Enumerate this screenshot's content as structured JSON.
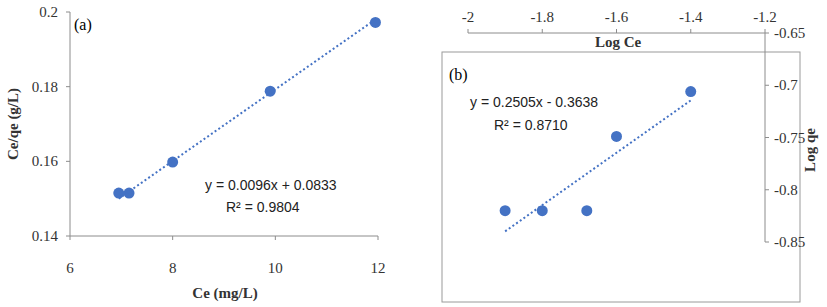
{
  "chart_data": [
    {
      "type": "scatter",
      "title": "(a)",
      "x_label": "Ce (mg/L)",
      "y_label": "Ce/qe (g/L)",
      "xlim": [
        6,
        12
      ],
      "xticks": [
        6,
        8,
        10,
        12
      ],
      "ylim": [
        0.14,
        0.2
      ],
      "yticks": [
        0.14,
        0.16,
        0.18,
        0.2
      ],
      "grid": false,
      "annotations": [
        "y = 0.0096x + 0.0833",
        "R² = 0.9804"
      ],
      "series": [
        {
          "type": "scatter",
          "marker": "circle",
          "color": "#4472c4",
          "x": [
            6.95,
            7.15,
            8.0,
            9.9,
            11.95
          ],
          "values": [
            0.1515,
            0.1515,
            0.1598,
            0.1788,
            0.1972
          ]
        },
        {
          "type": "line",
          "line_style": "dotted",
          "color": "#4472c4",
          "x": [
            6.95,
            11.95
          ],
          "values": [
            0.15,
            0.198
          ]
        }
      ]
    },
    {
      "type": "scatter",
      "title": "(b)",
      "x_label": "Log Ce",
      "y_label": "Log qe",
      "xlim": [
        -2,
        -1.2
      ],
      "xticks": [
        -2,
        -1.8,
        -1.6,
        -1.4,
        -1.2
      ],
      "ylim": [
        -0.85,
        -0.65
      ],
      "yticks": [
        -0.85,
        -0.8,
        -0.75,
        -0.7,
        -0.65
      ],
      "grid": false,
      "annotations": [
        "y = 0.2505x - 0.3638",
        "R² = 0.8710"
      ],
      "series": [
        {
          "type": "scatter",
          "marker": "circle",
          "color": "#4472c4",
          "x": [
            -1.9,
            -1.8,
            -1.68,
            -1.6,
            -1.4
          ],
          "values": [
            -0.82,
            -0.82,
            -0.82,
            -0.749,
            -0.706
          ]
        },
        {
          "type": "line",
          "line_style": "dotted",
          "color": "#4472c4",
          "x": [
            -1.9,
            -1.4
          ],
          "values": [
            -0.8398,
            -0.7145
          ]
        }
      ]
    }
  ]
}
